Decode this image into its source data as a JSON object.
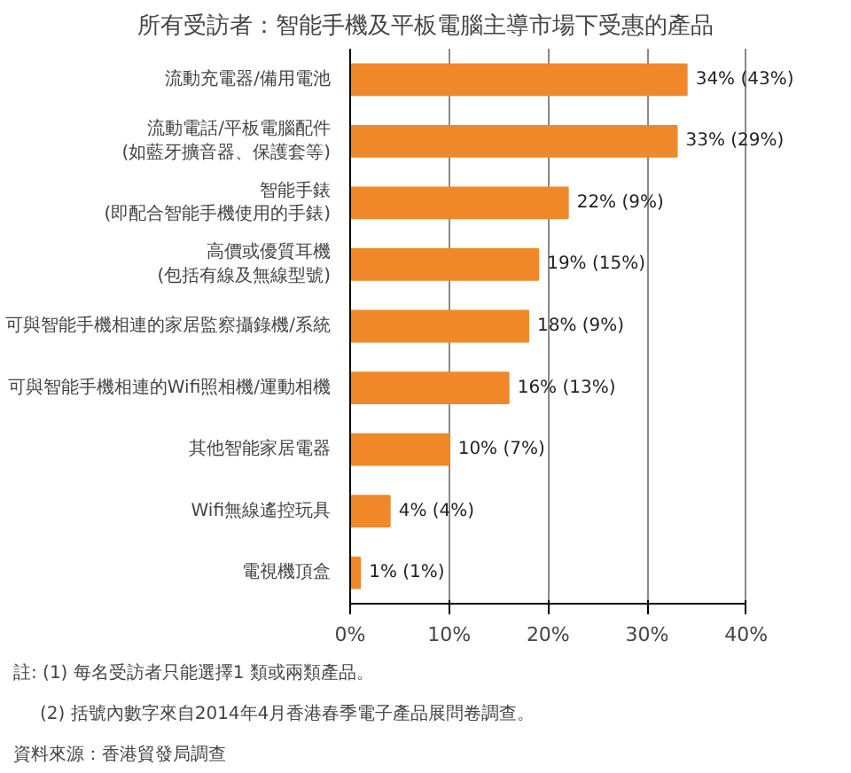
{
  "chart_data": {
    "type": "bar",
    "orientation": "horizontal",
    "title": "所有受訪者：智能手機及平板電腦主導市場下受惠的產品",
    "categories": [
      "流動充電器/備用電池",
      "流動電話/平板電腦配件\n(如藍牙擴音器、保護套等)",
      "智能手錶\n(即配合智能手機使用的手錶)",
      "高價或優質耳機\n(包括有線及無線型號)",
      "可與智能手機相連的家居監察攝錄機/系統",
      "可與智能手機相連的Wifi照相機/運動相機",
      "其他智能家居電器",
      "Wifi無線遙控玩具",
      "電視機頂盒"
    ],
    "values": [
      34,
      33,
      22,
      19,
      18,
      16,
      10,
      4,
      1
    ],
    "value_labels": [
      "34% (43%)",
      "33% (29%)",
      "22% (9%)",
      "19% (15%)",
      "18% (9%)",
      "16% (13%)",
      "10% (7%)",
      "4% (4%)",
      "1% (1%)"
    ],
    "color": "#f0882a",
    "xlim": [
      0,
      40
    ],
    "xticks": [
      {
        "value": 0,
        "label": "0%"
      },
      {
        "value": 10,
        "label": "10%"
      },
      {
        "value": 20,
        "label": "20%"
      },
      {
        "value": 30,
        "label": "30%"
      },
      {
        "value": 40,
        "label": "40%"
      }
    ],
    "grid": "x",
    "annotations": [
      "註: (1) 每名受訪者只能選擇1 類或兩類產品。",
      "(2) 括號內數字來自2014年4月香港春季電子產品展問卷調查。",
      "資料來源：香港貿發局調查"
    ]
  }
}
